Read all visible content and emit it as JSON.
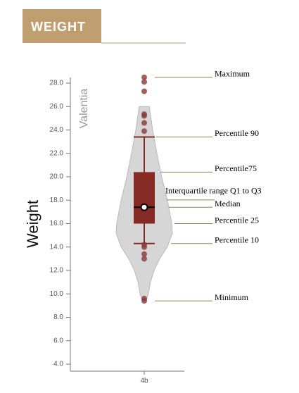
{
  "header": {
    "title": "WEIGHT"
  },
  "chart_data": {
    "type": "violin-box",
    "y_label": "Weight",
    "series_label": "Valentia",
    "categories": [
      "4b"
    ],
    "ylim": [
      3.5,
      28.5
    ],
    "yticks": [
      {
        "value": 4,
        "label": "4.0"
      },
      {
        "value": 6,
        "label": "6.0"
      },
      {
        "value": 8,
        "label": "8.0"
      },
      {
        "value": 10,
        "label": "10.0"
      },
      {
        "value": 12,
        "label": "12.0"
      },
      {
        "value": 14,
        "label": "14.0"
      },
      {
        "value": 16,
        "label": "16.0"
      },
      {
        "value": 18,
        "label": "18.0"
      },
      {
        "value": 20,
        "label": "20.0"
      },
      {
        "value": 22,
        "label": "22.0"
      },
      {
        "value": 24,
        "label": "24.0"
      },
      {
        "value": 26,
        "label": "26.0"
      },
      {
        "value": 28,
        "label": "28.0"
      }
    ],
    "box": {
      "whislo": 14.3,
      "q1": 16.0,
      "med": 17.4,
      "q3": 20.4,
      "whishi": 23.4
    },
    "points": [
      28.5,
      28.1,
      27.3,
      25.35,
      25.2,
      24.6,
      23.9,
      14.2,
      14.0,
      13.4,
      13.0,
      9.6,
      9.4
    ],
    "violin": {
      "y": [
        26,
        24,
        22,
        20,
        18,
        16,
        15.2,
        14,
        13,
        12,
        11,
        10,
        9.5
      ],
      "density": [
        0.18,
        0.3,
        0.45,
        0.62,
        0.82,
        0.98,
        1.0,
        0.82,
        0.55,
        0.35,
        0.22,
        0.15,
        0.08
      ]
    },
    "box_color": "#862a24",
    "point_color": "#8b3a3a",
    "violin_color": "#d6d6d6",
    "annotations": [
      "Maximum",
      "Percentile 90",
      "Percentile75",
      "Interquartile range Q1 to Q3",
      "Median",
      "Percentile 25",
      "Percentile 10",
      "Minimum"
    ]
  }
}
